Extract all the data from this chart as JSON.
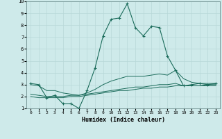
{
  "xlabel": "Humidex (Indice chaleur)",
  "background_color": "#ceeaea",
  "grid_color": "#b8d8d8",
  "line_color": "#1a6b5a",
  "xlim": [
    -0.5,
    23.5
  ],
  "ylim": [
    1,
    10
  ],
  "xticks": [
    0,
    1,
    2,
    3,
    4,
    5,
    6,
    7,
    8,
    9,
    10,
    11,
    12,
    13,
    14,
    15,
    16,
    17,
    18,
    19,
    20,
    21,
    22,
    23
  ],
  "yticks": [
    1,
    2,
    3,
    4,
    5,
    6,
    7,
    8,
    9,
    10
  ],
  "line1_x": [
    0,
    1,
    2,
    3,
    4,
    5,
    6,
    7,
    8,
    9,
    10,
    11,
    12,
    13,
    14,
    15,
    16,
    17,
    18,
    19,
    20,
    21,
    22,
    23
  ],
  "line1_y": [
    3.1,
    3.0,
    1.9,
    2.1,
    1.4,
    1.4,
    1.0,
    2.5,
    4.4,
    7.1,
    8.5,
    8.6,
    9.8,
    7.8,
    7.1,
    7.9,
    7.8,
    5.4,
    4.2,
    2.9,
    3.0,
    3.1,
    3.0,
    3.1
  ],
  "line2_x": [
    0,
    1,
    2,
    3,
    4,
    5,
    6,
    7,
    8,
    9,
    10,
    11,
    12,
    13,
    14,
    15,
    16,
    17,
    18,
    19,
    20,
    21,
    22,
    23
  ],
  "line2_y": [
    2.2,
    2.1,
    2.0,
    2.0,
    2.0,
    2.1,
    2.1,
    2.2,
    2.3,
    2.4,
    2.5,
    2.6,
    2.7,
    2.8,
    2.8,
    2.9,
    3.0,
    3.0,
    3.1,
    2.9,
    2.9,
    2.9,
    3.0,
    3.0
  ],
  "line3_x": [
    0,
    1,
    2,
    3,
    4,
    5,
    6,
    7,
    8,
    9,
    10,
    11,
    12,
    13,
    14,
    15,
    16,
    17,
    18,
    19,
    20,
    21,
    22,
    23
  ],
  "line3_y": [
    2.0,
    1.9,
    1.9,
    1.9,
    1.9,
    2.0,
    2.0,
    2.1,
    2.2,
    2.3,
    2.4,
    2.5,
    2.5,
    2.6,
    2.7,
    2.7,
    2.8,
    2.8,
    2.9,
    2.9,
    2.9,
    2.9,
    2.9,
    2.9
  ],
  "line4_x": [
    0,
    1,
    2,
    3,
    4,
    5,
    6,
    7,
    8,
    9,
    10,
    11,
    12,
    13,
    14,
    15,
    16,
    17,
    18,
    19,
    20,
    21,
    22,
    23
  ],
  "line4_y": [
    3.0,
    2.9,
    2.5,
    2.5,
    2.3,
    2.2,
    2.1,
    2.3,
    2.6,
    3.0,
    3.3,
    3.5,
    3.7,
    3.7,
    3.7,
    3.8,
    3.9,
    3.8,
    4.2,
    3.5,
    3.2,
    3.1,
    3.1,
    3.1
  ]
}
